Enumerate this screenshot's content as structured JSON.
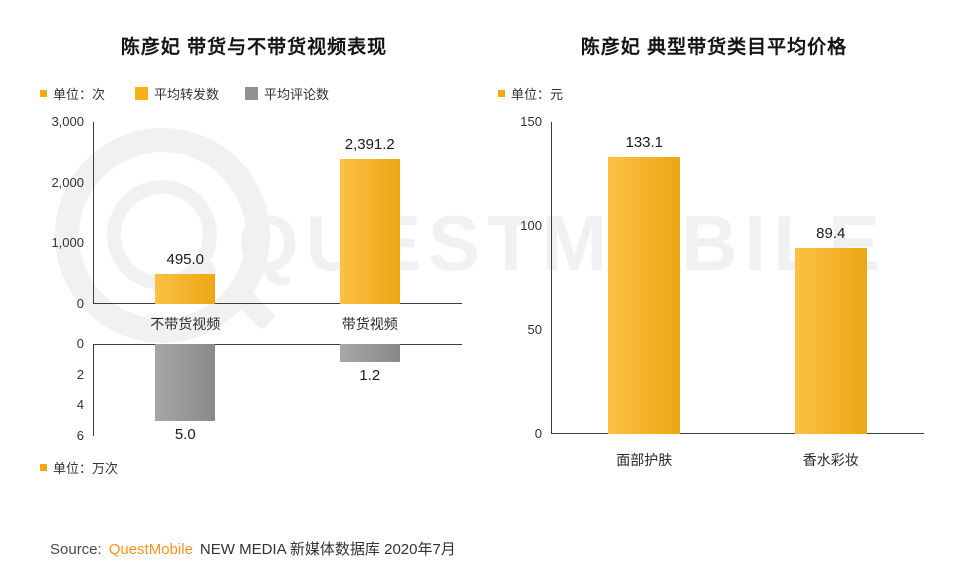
{
  "theme": {
    "accent": "#F7A90E",
    "bar_yellow": "#FBB116",
    "bar_gray": "#8F9193",
    "brand_orange": "#F7941E",
    "watermark_gray": "#F1F1F1"
  },
  "watermark": {
    "text": "QUESTMOBILE"
  },
  "chart_data": [
    {
      "type": "bar",
      "title": "陈彦妃 带货与不带货视频表现",
      "unit_top": "单位：次",
      "unit_bottom": "单位：万次",
      "categories": [
        "不带货视频",
        "带货视频"
      ],
      "series": [
        {
          "name": "平均转发数",
          "direction": "up",
          "values": [
            495.0,
            2391.2
          ],
          "value_labels": [
            "495.0",
            "2,391.2"
          ],
          "ylim": [
            0,
            3000
          ],
          "ticks": [
            {
              "label": "3,000",
              "value": 3000
            },
            {
              "label": "2,000",
              "value": 2000
            },
            {
              "label": "1,000",
              "value": 1000
            },
            {
              "label": "0",
              "value": 0
            }
          ],
          "color": "#FBB116"
        },
        {
          "name": "平均评论数",
          "direction": "down",
          "values": [
            5.0,
            1.2
          ],
          "value_labels": [
            "5.0",
            "1.2"
          ],
          "ylim": [
            0,
            6
          ],
          "ticks": [
            {
              "label": "0",
              "value": 0
            },
            {
              "label": "2",
              "value": 2
            },
            {
              "label": "4",
              "value": 4
            },
            {
              "label": "6",
              "value": 6
            }
          ],
          "color": "#8F9193"
        }
      ]
    },
    {
      "type": "bar",
      "title": "陈彦妃 典型带货类目平均价格",
      "unit": "单位：元",
      "direction": "up",
      "categories": [
        "面部护肤",
        "香水彩妆"
      ],
      "values": [
        133.1,
        89.4
      ],
      "value_labels": [
        "133.1",
        "89.4"
      ],
      "ylim": [
        0,
        150
      ],
      "ticks": [
        {
          "label": "150",
          "value": 150
        },
        {
          "label": "100",
          "value": 100
        },
        {
          "label": "50",
          "value": 50
        },
        {
          "label": "0",
          "value": 0
        }
      ],
      "color": "#FBB116"
    }
  ],
  "footer": {
    "source_label": "Source:",
    "brand": "QuestMobile",
    "rest": "NEW MEDIA 新媒体数据库 2020年7月"
  }
}
